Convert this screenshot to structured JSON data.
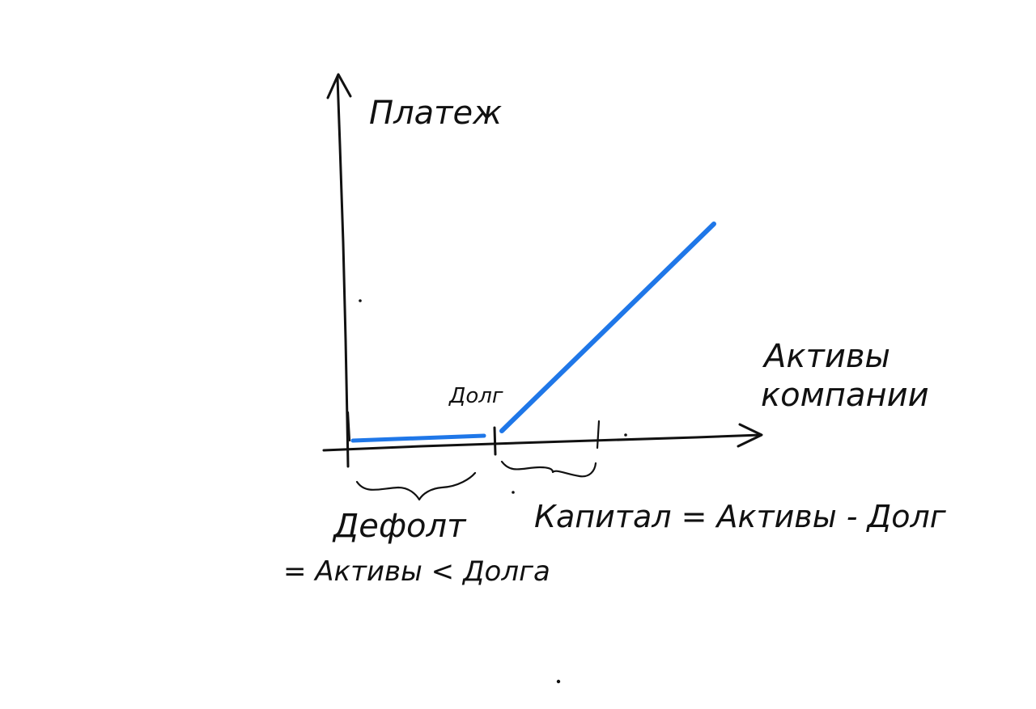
{
  "chart_data": {
    "type": "line",
    "title": "",
    "ylabel": "Платеж",
    "xlabel": [
      "Активы",
      "компании"
    ],
    "series": [
      {
        "x": [
          0,
          1,
          2.5
        ],
        "values": [
          0,
          0,
          1.5
        ]
      }
    ],
    "xlim": [
      0,
      2.5
    ],
    "ylim": [
      0,
      2.5
    ],
    "grid": false,
    "line_color": "#1f77e8",
    "axis_color": "#111111",
    "tick_labels": [
      "Долг"
    ],
    "annotations": [
      {
        "text": [
          "Дефолт",
          "= Активы < Долга"
        ]
      },
      {
        "text": [
          "Капитал = Активы - Долг"
        ]
      }
    ]
  }
}
